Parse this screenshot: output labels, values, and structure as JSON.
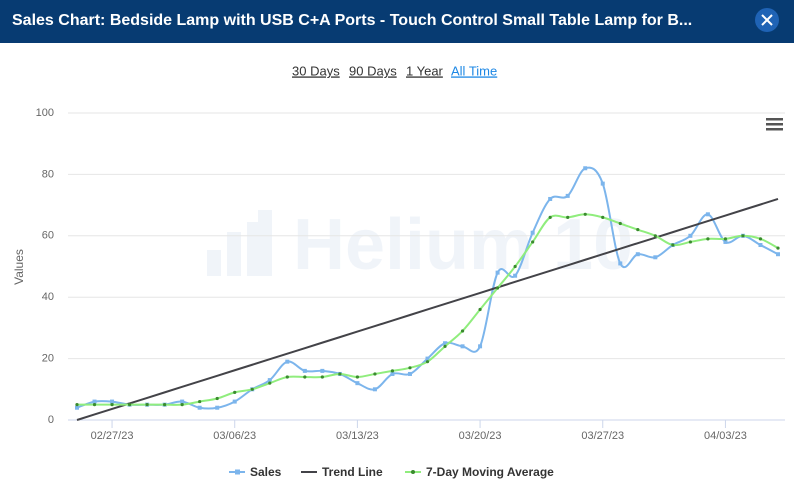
{
  "header": {
    "title": "Sales Chart: Bedside Lamp with USB C+A Ports - Touch Control Small Table Lamp for B..."
  },
  "ranges": [
    "30 Days",
    "90 Days",
    "1 Year",
    "All Time"
  ],
  "chart_data": {
    "type": "line",
    "watermark": "Helium 10",
    "y_label": "Values",
    "categories": [
      null,
      null,
      "02/27/23",
      null,
      null,
      null,
      null,
      null,
      null,
      "03/06/23",
      null,
      null,
      null,
      null,
      null,
      null,
      "03/13/23",
      null,
      null,
      null,
      null,
      null,
      null,
      "03/20/23",
      null,
      null,
      null,
      null,
      null,
      null,
      "03/27/23",
      null,
      null,
      null,
      null,
      null,
      null,
      "04/03/23",
      null,
      null,
      null
    ],
    "ylim": [
      0,
      100
    ],
    "yticks": [
      0,
      20,
      40,
      60,
      80,
      100
    ],
    "grid": true,
    "series": [
      {
        "name": "Sales",
        "color": "#7cb5ec",
        "smooth": true,
        "marker": "square",
        "values": [
          4,
          6,
          6,
          5,
          5,
          5,
          6,
          4,
          4,
          6,
          10,
          13,
          19,
          16,
          16,
          15,
          12,
          10,
          15,
          15,
          20,
          25,
          24,
          24,
          48,
          47,
          61,
          72,
          73,
          82,
          77,
          51,
          54,
          53,
          57,
          60,
          67,
          58,
          60,
          57,
          54
        ]
      },
      {
        "name": "Trend Line",
        "color": "#434348",
        "smooth": false,
        "marker": "none",
        "values": [
          0,
          1.8,
          3.6,
          5.4,
          7.2,
          9,
          10.8,
          12.6,
          14.4,
          16.2,
          18,
          19.8,
          21.6,
          23.4,
          25.2,
          27,
          28.8,
          30.6,
          32.4,
          34.2,
          36,
          37.8,
          39.6,
          41.4,
          43.2,
          45,
          46.8,
          48.6,
          50.4,
          52.2,
          54,
          55.8,
          57.6,
          59.4,
          61.2,
          63,
          64.8,
          66.6,
          68.4,
          70.2,
          72
        ]
      },
      {
        "name": "7-Day Moving Average",
        "color": "#90ed7d",
        "smooth": true,
        "marker": "circle",
        "values": [
          5,
          5,
          5,
          5,
          5,
          5,
          5,
          6,
          7,
          9,
          10,
          12,
          14,
          14,
          14,
          15,
          14,
          15,
          16,
          17,
          19,
          24,
          29,
          36,
          43,
          50,
          58,
          66,
          66,
          67,
          66,
          64,
          62,
          60,
          57,
          58,
          59,
          59,
          60,
          59,
          56
        ]
      }
    ]
  }
}
